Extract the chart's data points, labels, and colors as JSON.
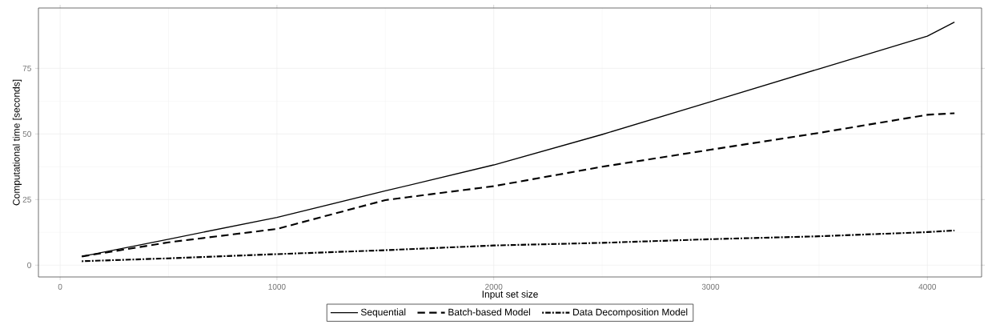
{
  "chart_data": {
    "type": "line",
    "xlabel": "Input set size",
    "ylabel": "Computational time [seconds]",
    "xlim": [
      -100,
      4250
    ],
    "ylim": [
      -4.5,
      98
    ],
    "xticks": [
      0,
      1000,
      2000,
      3000,
      4000
    ],
    "yticks": [
      0,
      25,
      50,
      75
    ],
    "grid": true,
    "legend": "bottom",
    "x": [
      100,
      500,
      1000,
      1500,
      2000,
      2500,
      3000,
      3500,
      4000,
      4125
    ],
    "series": [
      {
        "name": "Sequential",
        "color": "#000000",
        "line_style": "solid",
        "values": [
          3.3,
          9.9,
          18.2,
          28.3,
          38.2,
          49.8,
          62.3,
          74.8,
          87.3,
          92.6
        ]
      },
      {
        "name": "Batch-based Model",
        "color": "#000000",
        "line_style": "dashed",
        "values": [
          3.3,
          8.7,
          13.8,
          24.8,
          30.1,
          37.5,
          44,
          50.4,
          57.3,
          57.9
        ]
      },
      {
        "name": "Data Decomposition Model",
        "color": "#000000",
        "line_style": "dashdot",
        "values": [
          1.5,
          2.6,
          4.2,
          5.7,
          7.5,
          8.5,
          9.9,
          11,
          12.6,
          13.2
        ]
      }
    ]
  }
}
